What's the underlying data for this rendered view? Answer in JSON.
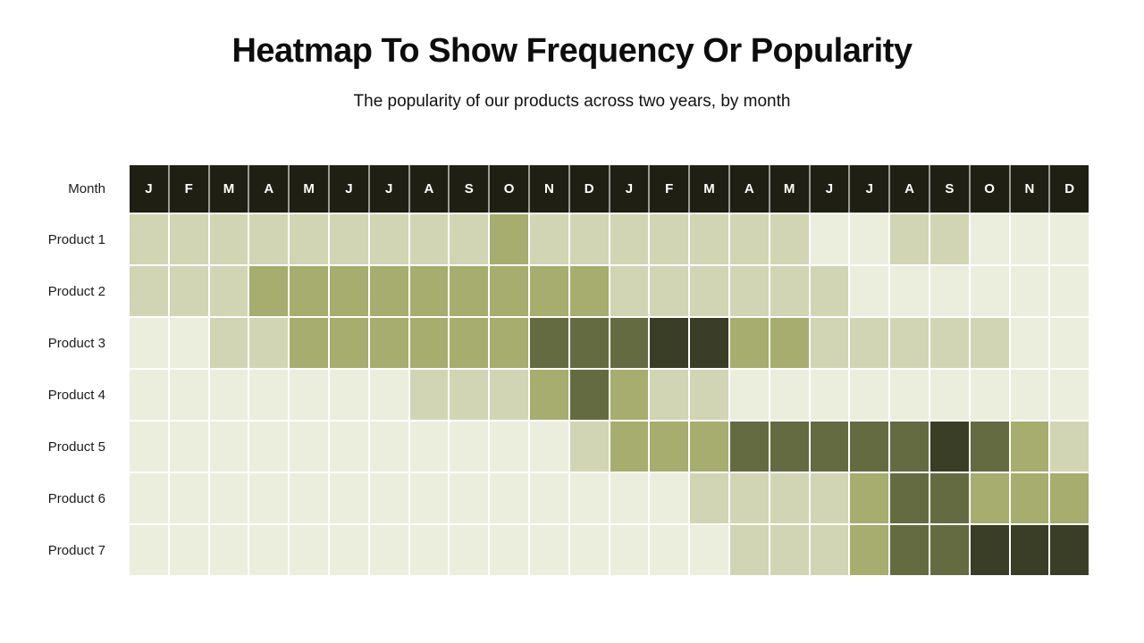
{
  "title": "Heatmap To Show Frequency Or Popularity",
  "subtitle": "The popularity of our products across two years, by month",
  "chart_data": {
    "type": "heatmap",
    "corner_label": "Month",
    "months": [
      "J",
      "F",
      "M",
      "A",
      "M",
      "J",
      "J",
      "A",
      "S",
      "O",
      "N",
      "D",
      "J",
      "F",
      "M",
      "A",
      "M",
      "J",
      "J",
      "A",
      "S",
      "O",
      "N",
      "D"
    ],
    "rows": [
      {
        "label": "Product 1",
        "values": [
          1,
          1,
          1,
          1,
          1,
          1,
          1,
          1,
          1,
          2,
          1,
          1,
          1,
          1,
          1,
          1,
          1,
          0,
          0,
          1,
          1,
          0,
          0,
          0
        ]
      },
      {
        "label": "Product 2",
        "values": [
          1,
          1,
          1,
          2,
          2,
          2,
          2,
          2,
          2,
          2,
          2,
          2,
          1,
          1,
          1,
          1,
          1,
          1,
          0,
          0,
          0,
          0,
          0,
          0
        ]
      },
      {
        "label": "Product 3",
        "values": [
          0,
          0,
          1,
          1,
          2,
          2,
          2,
          2,
          2,
          2,
          3,
          3,
          3,
          4,
          4,
          2,
          2,
          1,
          1,
          1,
          1,
          1,
          0,
          0
        ]
      },
      {
        "label": "Product 4",
        "values": [
          0,
          0,
          0,
          0,
          0,
          0,
          0,
          1,
          1,
          1,
          2,
          3,
          2,
          1,
          1,
          0,
          0,
          0,
          0,
          0,
          0,
          0,
          0,
          0
        ]
      },
      {
        "label": "Product 5",
        "values": [
          0,
          0,
          0,
          0,
          0,
          0,
          0,
          0,
          0,
          0,
          0,
          1,
          2,
          2,
          2,
          3,
          3,
          3,
          3,
          3,
          4,
          3,
          2,
          1
        ]
      },
      {
        "label": "Product 6",
        "values": [
          0,
          0,
          0,
          0,
          0,
          0,
          0,
          0,
          0,
          0,
          0,
          0,
          0,
          0,
          1,
          1,
          1,
          1,
          2,
          3,
          3,
          2,
          2,
          2
        ]
      },
      {
        "label": "Product 7",
        "values": [
          0,
          0,
          0,
          0,
          0,
          0,
          0,
          0,
          0,
          0,
          0,
          0,
          0,
          0,
          0,
          1,
          1,
          1,
          2,
          3,
          3,
          4,
          4,
          4
        ]
      }
    ],
    "scale": {
      "description": "intensity level 0 (lowest popularity) to 4 (highest popularity)",
      "palette": [
        "#ebeedd",
        "#d2d5b4",
        "#a6ad6e",
        "#646b41",
        "#3a3e26"
      ]
    },
    "colors": {
      "header_background": "#201f14",
      "header_text": "#ffffff",
      "header_divider": "#9b9b95",
      "grid_gap": "#ffffff"
    },
    "layout": {
      "legend": "none",
      "grid": "white gaps between cells",
      "columns": 24,
      "row_count": 7
    }
  }
}
